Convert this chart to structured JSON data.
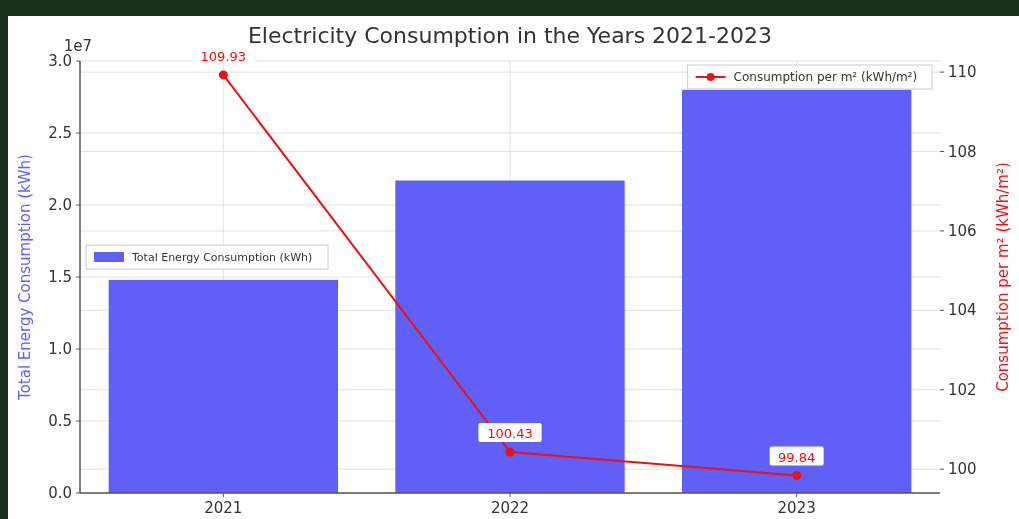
{
  "chart_data": {
    "type": "bar",
    "title": "Electricity Consumption in the Years 2021-2023",
    "ylabel": "Total Energy Consumption (kWh)",
    "y2label": "Consumption per m² (kWh/m²)",
    "categories": [
      "2021",
      "2022",
      "2023"
    ],
    "series": [
      {
        "name": "Total Energy Consumption (kWh)",
        "color": "#6060f8",
        "values": [
          1.48,
          2.17,
          2.8
        ]
      },
      {
        "name": "Consumption per m² (kWh/m²)",
        "type": "line",
        "axis": "y2",
        "color": "#ee1111",
        "values": [
          109.93,
          100.43,
          99.84
        ],
        "marker": "circle",
        "data_labels": true
      }
    ],
    "annotations": [
      "1e7"
    ],
    "ylim": [
      0,
      3
    ],
    "yticks": [
      {
        "value": 0,
        "label": "0.0"
      },
      0.5,
      {
        "value": 1,
        "label": "1.0"
      },
      1.5,
      {
        "value": 2,
        "label": "2.0"
      },
      2.5,
      {
        "value": 3,
        "label": "3.0"
      }
    ],
    "y2lim": [
      99.4,
      110.28
    ],
    "y2ticks": [
      100,
      102,
      104,
      106,
      108,
      110
    ],
    "grid": true,
    "legend": "top"
  }
}
